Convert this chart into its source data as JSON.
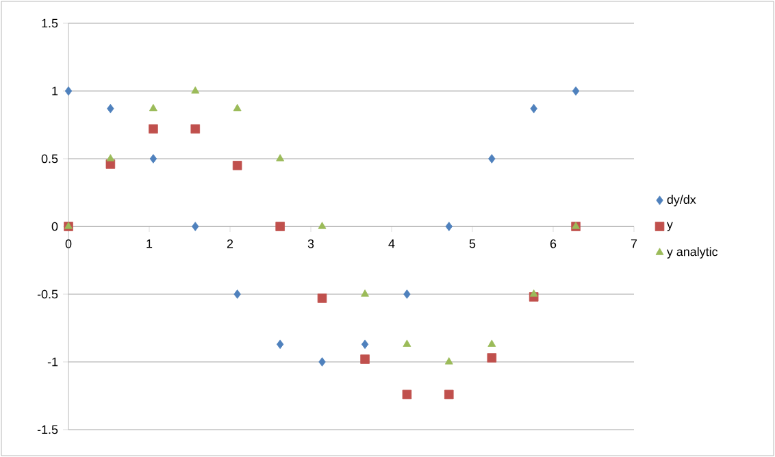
{
  "chart_data": {
    "type": "scatter",
    "xlim": [
      0,
      7
    ],
    "ylim": [
      -1.5,
      1.5
    ],
    "xticks": [
      0,
      1,
      2,
      3,
      4,
      5,
      6,
      7
    ],
    "yticks": [
      -1.5,
      -1,
      -0.5,
      0,
      0.5,
      1,
      1.5
    ],
    "grid": "y",
    "legend": "right",
    "x": [
      0,
      0.52,
      1.05,
      1.57,
      2.09,
      2.62,
      3.14,
      3.67,
      4.19,
      4.71,
      5.24,
      5.76,
      6.28
    ],
    "series": [
      {
        "name": "dy/dx",
        "color": "#4f81bd",
        "marker": "diamond",
        "values": [
          1,
          0.87,
          0.5,
          0,
          -0.5,
          -0.87,
          -1,
          -0.87,
          -0.5,
          0,
          0.5,
          0.87,
          1
        ]
      },
      {
        "name": "y",
        "color": "#c0504d",
        "marker": "square",
        "values": [
          0,
          0.46,
          0.72,
          0.72,
          0.45,
          0,
          -0.53,
          -0.98,
          -1.24,
          -1.24,
          -0.97,
          -0.52,
          0
        ]
      },
      {
        "name": "y analytic",
        "color": "#9bbb59",
        "marker": "triangle",
        "values": [
          0,
          0.5,
          0.87,
          1,
          0.87,
          0.5,
          0,
          -0.5,
          -0.87,
          -1,
          -0.87,
          -0.5,
          0
        ]
      }
    ]
  }
}
